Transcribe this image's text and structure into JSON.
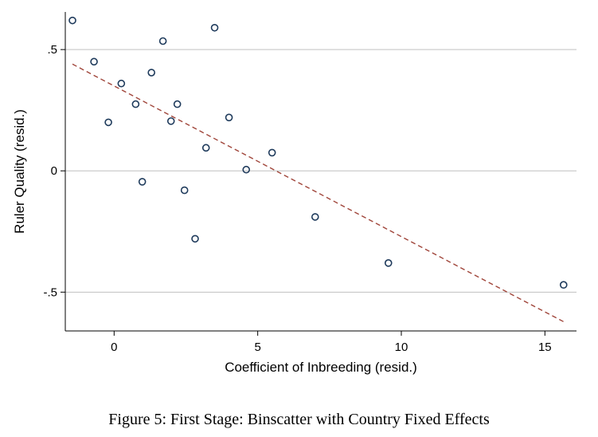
{
  "caption": "Figure 5: First Stage: Binscatter with Country Fixed Effects",
  "chart_data": {
    "type": "scatter",
    "xlabel": "Coefficient of Inbreeding (resid.)",
    "ylabel": "Ruler Quality (resid.)",
    "xlim": [
      -1.7,
      16.1
    ],
    "ylim": [
      -0.66,
      0.655
    ],
    "xticks": [
      {
        "value": 0,
        "label": "0"
      },
      {
        "value": 5,
        "label": "5"
      },
      {
        "value": 10,
        "label": "10"
      },
      {
        "value": 15,
        "label": "15"
      }
    ],
    "yticks": [
      {
        "value": 0.5,
        "label": ".5"
      },
      {
        "value": 0,
        "label": "0"
      },
      {
        "value": -0.5,
        "label": "-.5"
      }
    ],
    "grid": "horizontal",
    "points": [
      {
        "x": -1.45,
        "y": 0.62
      },
      {
        "x": -0.7,
        "y": 0.45
      },
      {
        "x": -0.2,
        "y": 0.2
      },
      {
        "x": 0.25,
        "y": 0.36
      },
      {
        "x": 0.75,
        "y": 0.275
      },
      {
        "x": 0.98,
        "y": -0.045
      },
      {
        "x": 1.3,
        "y": 0.405
      },
      {
        "x": 1.7,
        "y": 0.535
      },
      {
        "x": 1.98,
        "y": 0.205
      },
      {
        "x": 2.2,
        "y": 0.275
      },
      {
        "x": 2.45,
        "y": -0.08
      },
      {
        "x": 2.82,
        "y": -0.28
      },
      {
        "x": 3.2,
        "y": 0.095
      },
      {
        "x": 3.5,
        "y": 0.59
      },
      {
        "x": 4.0,
        "y": 0.22
      },
      {
        "x": 4.6,
        "y": 0.005
      },
      {
        "x": 5.5,
        "y": 0.075
      },
      {
        "x": 7.0,
        "y": -0.19
      },
      {
        "x": 9.55,
        "y": -0.38
      },
      {
        "x": 15.65,
        "y": -0.47
      }
    ],
    "fit_line": {
      "x": [
        -1.45,
        15.7
      ],
      "y": [
        0.44,
        -0.625
      ]
    },
    "colors": {
      "points": "#1f3b5c",
      "fit_line": "#a0453a",
      "grid": "#c0c0c0"
    }
  }
}
